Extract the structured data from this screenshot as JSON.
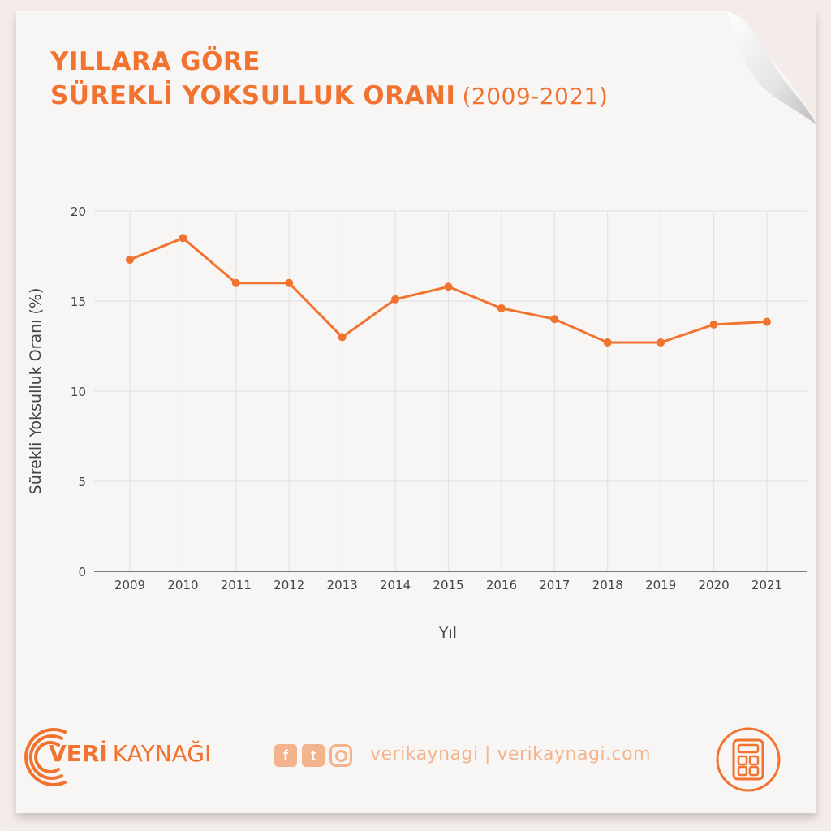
{
  "header": {
    "title_line1": "YILLARA GÖRE",
    "title_line2": "SÜREKLİ YOKSULLUK ORANI",
    "title_range": "(2009-2021)"
  },
  "chart_data": {
    "type": "line",
    "title": "YILLARA GÖRE SÜREKLİ YOKSULLUK ORANI (2009-2021)",
    "xlabel": "Yıl",
    "ylabel": "Sürekli Yoksulluk Oranı (%)",
    "x": [
      "2009",
      "2010",
      "2011",
      "2012",
      "2013",
      "2014",
      "2015",
      "2016",
      "2017",
      "2018",
      "2019",
      "2020",
      "2021"
    ],
    "series": [
      {
        "values": [
          17.3,
          18.5,
          16.0,
          16.0,
          13.0,
          15.1,
          15.8,
          14.6,
          14.0,
          12.7,
          12.7,
          13.7,
          13.85
        ]
      }
    ],
    "ylim": [
      0,
      20
    ],
    "yticks": [
      0,
      5,
      10,
      15,
      20
    ],
    "grid": true,
    "line_color": "#f1732f"
  },
  "footer": {
    "brand_bold": "VERİ",
    "brand_rest": "KAYNAĞI",
    "social_facebook": "f",
    "social_twitter": "t",
    "site_text": "verikaynagi | verikaynagi.com",
    "icons": [
      "facebook-icon",
      "twitter-icon",
      "instagram-icon",
      "calculator-icon"
    ]
  },
  "colors": {
    "accent": "#f1732f",
    "accent_light": "#f3b38c",
    "grid": "#e6e4e2",
    "axis": "#555555"
  }
}
